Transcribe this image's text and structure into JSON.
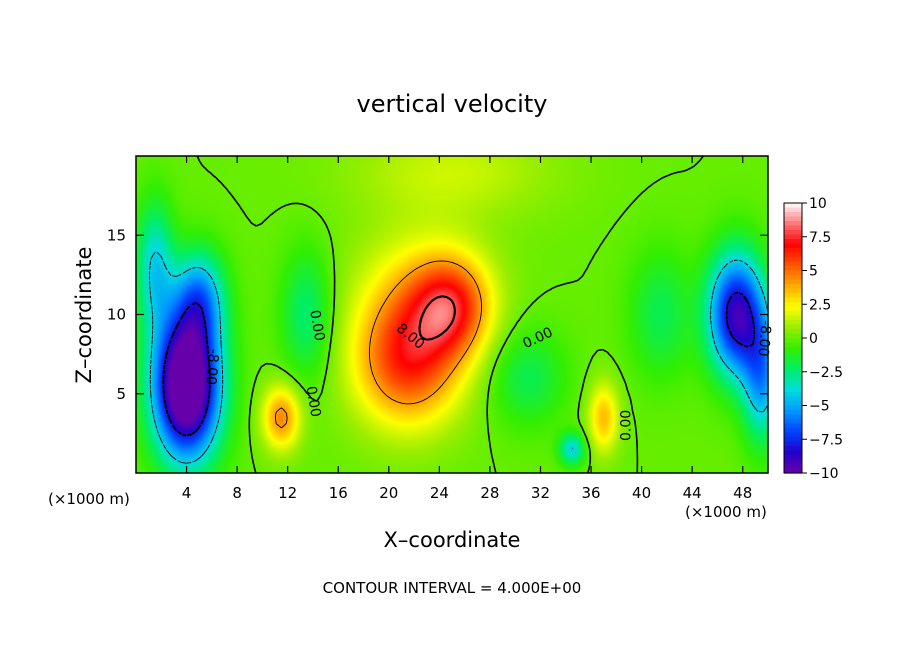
{
  "chart_data": {
    "type": "heatmap",
    "title": "vertical velocity",
    "xlabel": "X–coordinate",
    "ylabel": "Z–coordinate",
    "x_unit_left": "(×1000 m)",
    "x_unit_right": "(×1000 m)",
    "xlim": [
      0,
      50
    ],
    "ylim": [
      0,
      20
    ],
    "x_ticks": [
      4,
      8,
      12,
      16,
      20,
      24,
      28,
      32,
      36,
      40,
      44,
      48
    ],
    "y_ticks": [
      5,
      10,
      15
    ],
    "colorbar": {
      "min": -10,
      "max": 10,
      "ticks": [
        10,
        7.5,
        5,
        2.5,
        0,
        -2.5,
        -5,
        -7.5,
        -10
      ],
      "tick_labels": [
        "10",
        "7.5",
        "5",
        "2.5",
        "0",
        "−2.5",
        "−5",
        "−7.5",
        "−10"
      ],
      "colors": [
        "#6600aa",
        "#2200cc",
        "#0044ff",
        "#0099ff",
        "#00dddd",
        "#00ee66",
        "#33ee00",
        "#99ee00",
        "#ffff00",
        "#ffaa00",
        "#ff5500",
        "#ff0000",
        "#ff7777",
        "#ffffff"
      ]
    },
    "features": [
      {
        "x": 21.5,
        "z": 7.0,
        "w": 6.0,
        "sx": 4.2,
        "sz": 4.0
      },
      {
        "x": 25.0,
        "z": 10.5,
        "w": 5.0,
        "sx": 3.0,
        "sz": 3.0
      },
      {
        "x": 22.5,
        "z": 11.5,
        "w": 2.5,
        "sx": 5.0,
        "sz": 4.0
      },
      {
        "x": 11.5,
        "z": 3.5,
        "w": 4.5,
        "sx": 1.5,
        "sz": 2.0
      },
      {
        "x": 37.0,
        "z": 3.5,
        "w": 3.5,
        "sx": 1.2,
        "sz": 2.2
      },
      {
        "x": 4.0,
        "z": 5.5,
        "w": -13.0,
        "sx": 2.6,
        "sz": 4.5
      },
      {
        "x": 5.0,
        "z": 11.0,
        "w": -5.0,
        "sx": 2.0,
        "sz": 3.0
      },
      {
        "x": 1.5,
        "z": 13.0,
        "w": -4.0,
        "sx": 1.5,
        "sz": 4.0
      },
      {
        "x": 47.5,
        "z": 10.0,
        "w": -9.0,
        "sx": 2.2,
        "sz": 3.8
      },
      {
        "x": 49.5,
        "z": 6.0,
        "w": -5.0,
        "sx": 1.5,
        "sz": 4.0
      },
      {
        "x": 34.5,
        "z": 1.5,
        "w": -4.0,
        "sx": 1.0,
        "sz": 1.0
      },
      {
        "x": 25.0,
        "z": 19.0,
        "w": 1.5,
        "sx": 8.0,
        "sz": 3.0
      },
      {
        "x": 13.5,
        "z": 10.0,
        "w": -2.5,
        "sx": 2.0,
        "sz": 4.0
      },
      {
        "x": 31.0,
        "z": 6.0,
        "w": -2.0,
        "sx": 3.0,
        "sz": 3.0
      },
      {
        "x": 41.5,
        "z": 10.0,
        "w": -2.0,
        "sx": 2.5,
        "sz": 4.0
      }
    ],
    "contour_interval": 4,
    "contour_labels": [
      {
        "text": "0.00",
        "x": 14.3,
        "z": 9.3,
        "rotate": 80
      },
      {
        "text": "0.00",
        "x": 14.0,
        "z": 4.5,
        "rotate": 80
      },
      {
        "text": "0.00",
        "x": 31.8,
        "z": 8.5,
        "rotate": -25
      },
      {
        "text": "0.00",
        "x": 38.8,
        "z": 3.0,
        "rotate": -90
      },
      {
        "text": "-8.00",
        "x": 6.0,
        "z": 6.7,
        "rotate": 95
      },
      {
        "text": "8.00",
        "x": 21.7,
        "z": 8.6,
        "rotate": 40
      },
      {
        "text": "-8.00",
        "x": 49.7,
        "z": 8.5,
        "rotate": 95
      }
    ]
  },
  "footer": {
    "contour_interval_text": "CONTOUR INTERVAL = 4.000E+00"
  }
}
